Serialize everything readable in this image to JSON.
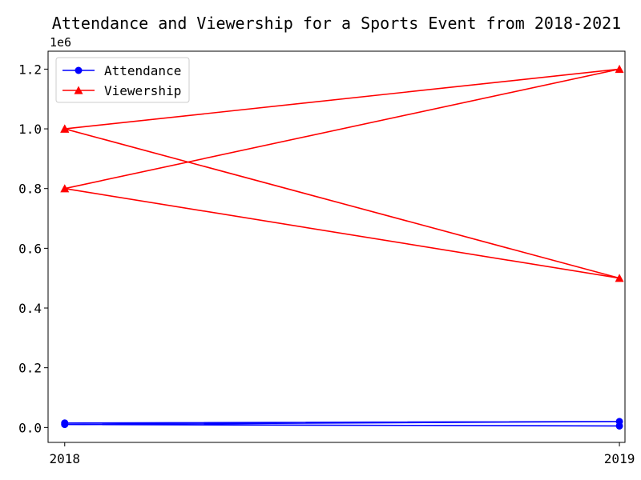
{
  "chart_data": {
    "type": "line",
    "title": "Attendance and Viewership for a Sports Event from 2018-2021",
    "xlabel": "",
    "ylabel": "",
    "x_ticks": [
      "2018",
      "2019"
    ],
    "y_ticks": [
      "0.0",
      "0.2",
      "0.4",
      "0.6",
      "0.8",
      "1.0",
      "1.2"
    ],
    "y_offset_label": "1e6",
    "xlim": [
      2017.97,
      2019.01
    ],
    "ylim": [
      -50000,
      1260000
    ],
    "grid": false,
    "legend_position": "top-left",
    "series": [
      {
        "name": "Attendance",
        "color": "#0000ff",
        "marker": "circle",
        "points": [
          {
            "x": 2018,
            "y": 15000
          },
          {
            "x": 2019,
            "y": 20000
          },
          {
            "x": 2018,
            "y": 10000
          },
          {
            "x": 2019,
            "y": 5000
          }
        ]
      },
      {
        "name": "Viewership",
        "color": "#ff0000",
        "marker": "triangle",
        "points": [
          {
            "x": 2018,
            "y": 1000000
          },
          {
            "x": 2019,
            "y": 1200000
          },
          {
            "x": 2018,
            "y": 800000
          },
          {
            "x": 2019,
            "y": 500000
          },
          {
            "x": 2018,
            "y": 1000000
          }
        ]
      }
    ]
  }
}
